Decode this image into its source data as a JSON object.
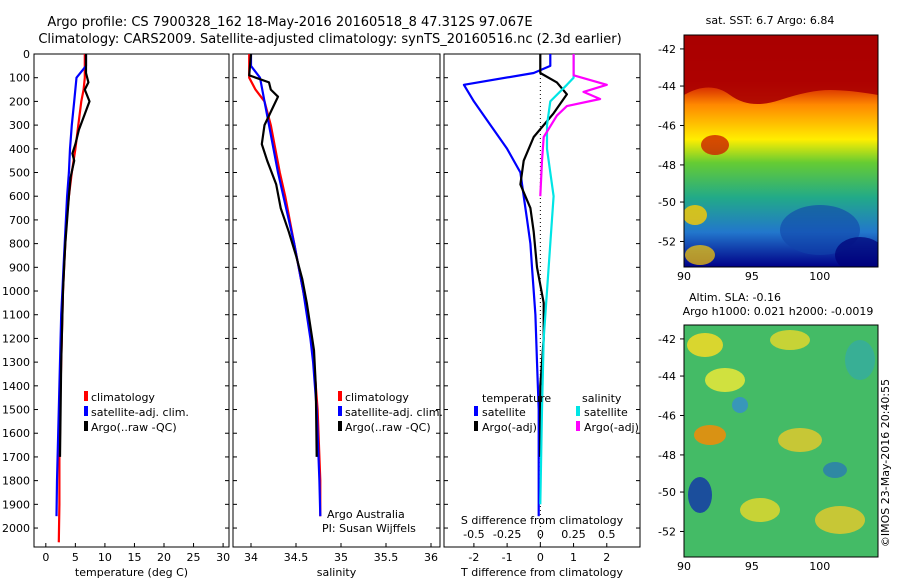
{
  "header": {
    "line1": "Argo profile: CS 7900328_162 18-May-2016 20160518_8 47.312S 97.067E",
    "line2": "Climatology: CARS2009. Satellite-adjusted climatology: synTS_20160516.nc (2.3d earlier)"
  },
  "colors": {
    "climatology": "#ff0000",
    "satellite": "#0000ff",
    "argo": "#000000",
    "salinity_satellite": "#00e5e5",
    "salinity_argo": "#ff00ff"
  },
  "chart_data": [
    {
      "type": "line",
      "xlabel": "temperature (deg C)",
      "xlim": [
        -2,
        31
      ],
      "xticks": [
        0,
        5,
        10,
        15,
        20,
        25,
        30
      ],
      "ylim": [
        2080,
        0
      ],
      "yticks": [
        0,
        100,
        200,
        300,
        400,
        500,
        600,
        700,
        800,
        900,
        1000,
        1100,
        1200,
        1300,
        1400,
        1500,
        1600,
        1700,
        1800,
        1900,
        2000
      ],
      "legend": [
        "climatology",
        "satellite-adj. clim.",
        "Argo(..raw -QC)"
      ],
      "legend_position": "lower-right",
      "series": [
        {
          "name": "climatology",
          "color": "#ff0000",
          "x": [
            6.6,
            6.6,
            6.4,
            6.0,
            5.5,
            5.0,
            4.4,
            3.9,
            3.5,
            3.3,
            3.1,
            2.9,
            2.8,
            2.7,
            2.6,
            2.5,
            2.4,
            2.4,
            2.3,
            2.3,
            2.3,
            2.2
          ],
          "y": [
            0,
            100,
            150,
            200,
            300,
            400,
            500,
            600,
            700,
            800,
            900,
            1000,
            1100,
            1200,
            1300,
            1400,
            1500,
            1600,
            1700,
            1800,
            1900,
            2060
          ]
        },
        {
          "name": "satellite-adj. clim.",
          "color": "#0000ff",
          "x": [
            6.8,
            6.8,
            5.2,
            4.8,
            4.4,
            4.1,
            3.9,
            3.6,
            3.4,
            3.2,
            3.0,
            2.8,
            2.6,
            2.5,
            2.4,
            2.3,
            2.2,
            2.1,
            2.0,
            1.9,
            1.8
          ],
          "y": [
            0,
            50,
            100,
            200,
            300,
            400,
            500,
            600,
            700,
            800,
            900,
            1000,
            1100,
            1200,
            1300,
            1400,
            1500,
            1600,
            1700,
            1800,
            1950
          ]
        },
        {
          "name": "Argo(..raw -QC)",
          "color": "#000000",
          "x": [
            6.8,
            6.8,
            7.2,
            6.6,
            7.4,
            6.5,
            5.6,
            5.0,
            4.5,
            4.8,
            4.2,
            3.9,
            3.6,
            3.3,
            3.1,
            2.9,
            2.8,
            2.7,
            2.6,
            2.5,
            2.4
          ],
          "y": [
            0,
            80,
            120,
            150,
            200,
            260,
            320,
            380,
            420,
            450,
            520,
            600,
            700,
            800,
            900,
            1000,
            1100,
            1200,
            1300,
            1500,
            1700
          ]
        }
      ]
    },
    {
      "type": "line",
      "xlabel": "salinity",
      "xlim": [
        33.8,
        36.1
      ],
      "xticks": [
        34,
        34.5,
        35,
        35.5,
        36
      ],
      "ylim": [
        2080,
        0
      ],
      "legend": [
        "climatology",
        "satellite-adj. clim.",
        "Argo(..raw -QC)"
      ],
      "legend_position": "lower-right",
      "annotation": [
        "Argo Australia",
        "PI: Susan Wijffels"
      ],
      "series": [
        {
          "name": "climatology",
          "color": "#ff0000",
          "x": [
            33.98,
            33.98,
            34.05,
            34.15,
            34.22,
            34.27,
            34.32,
            34.38,
            34.43,
            34.48,
            34.53,
            34.58,
            34.63,
            34.67,
            34.7,
            34.72,
            34.74,
            34.75,
            34.76,
            34.77,
            34.77
          ],
          "y": [
            0,
            100,
            150,
            200,
            300,
            400,
            500,
            600,
            700,
            800,
            900,
            1000,
            1100,
            1200,
            1300,
            1400,
            1500,
            1600,
            1700,
            1800,
            1950
          ]
        },
        {
          "name": "satellite-adj. clim.",
          "color": "#0000ff",
          "x": [
            34.0,
            34.0,
            34.1,
            34.15,
            34.2,
            34.25,
            34.3,
            34.36,
            34.42,
            34.48,
            34.53,
            34.58,
            34.62,
            34.66,
            34.69,
            34.71,
            34.73,
            34.74,
            34.75,
            34.76,
            34.77
          ],
          "y": [
            0,
            50,
            100,
            200,
            300,
            400,
            500,
            600,
            700,
            800,
            900,
            1000,
            1100,
            1200,
            1300,
            1400,
            1500,
            1600,
            1700,
            1800,
            1950
          ]
        },
        {
          "name": "Argo(..raw -QC)",
          "color": "#000000",
          "x": [
            34.0,
            33.98,
            34.2,
            34.22,
            34.3,
            34.25,
            34.15,
            34.12,
            34.18,
            34.28,
            34.33,
            34.42,
            34.5,
            34.57,
            34.62,
            34.66,
            34.7,
            34.72,
            34.73
          ],
          "y": [
            0,
            90,
            120,
            150,
            180,
            220,
            300,
            380,
            450,
            550,
            650,
            750,
            850,
            950,
            1050,
            1150,
            1250,
            1400,
            1700
          ]
        }
      ]
    },
    {
      "type": "line",
      "xlabel": "T difference from climatology",
      "xlabel_top": "S difference from climatology",
      "xlim": [
        -2.9,
        3.0
      ],
      "xticks": [
        -2,
        -1,
        0,
        1,
        2
      ],
      "xticks_top": [
        "-0.5",
        "-0.25",
        "0",
        "0.25",
        "0.5"
      ],
      "ylim": [
        2080,
        0
      ],
      "legend_temperature_title": "temperature",
      "legend_salinity_title": "salinity",
      "legend_temperature": [
        "satellite",
        "Argo(-adj)"
      ],
      "legend_salinity": [
        "satellite",
        "Argo(-adj)"
      ],
      "legend_position": "lower-center",
      "series": [
        {
          "name": "satellite",
          "color": "#0000ff",
          "x": [
            0.3,
            0.3,
            -0.2,
            -2.3,
            -2.0,
            -1.5,
            -1.0,
            -0.6,
            -0.5,
            -0.4,
            -0.3,
            -0.25,
            -0.2,
            -0.15,
            -0.1,
            -0.05,
            -0.05,
            -0.05
          ],
          "y": [
            0,
            50,
            80,
            130,
            200,
            300,
            400,
            500,
            600,
            700,
            800,
            900,
            1000,
            1100,
            1300,
            1500,
            1700,
            1950
          ]
        },
        {
          "name": "Argo(-adj)",
          "color": "#000000",
          "x": [
            0.0,
            0.0,
            0.5,
            0.8,
            0.4,
            -0.2,
            -0.5,
            -0.6,
            -0.3,
            -0.2,
            -0.1,
            0.1,
            0.1,
            0.0,
            0.0
          ],
          "y": [
            0,
            80,
            120,
            170,
            250,
            350,
            450,
            550,
            650,
            750,
            900,
            1050,
            1200,
            1400,
            1700
          ]
        },
        {
          "name": "satellite",
          "color": "#00e5e5",
          "x": [
            1.0,
            1.0,
            0.8,
            0.3,
            0.2,
            0.2,
            0.3,
            0.4,
            0.3,
            0.2,
            0.1,
            0.05,
            0.0
          ],
          "y": [
            0,
            100,
            130,
            200,
            300,
            400,
            500,
            600,
            800,
            1000,
            1200,
            1500,
            1900
          ]
        },
        {
          "name": "Argo(-adj)",
          "color": "#ff00ff",
          "x": [
            1.0,
            1.0,
            2.0,
            1.3,
            1.8,
            0.8,
            0.5,
            0.1,
            0.05,
            0.0
          ],
          "y": [
            0,
            90,
            130,
            160,
            190,
            220,
            260,
            350,
            450,
            600
          ]
        }
      ]
    }
  ],
  "maps": {
    "sst": {
      "title": "sat. SST: 6.7 Argo: 6.84",
      "y_ticks": [
        "-42",
        "-44",
        "-46",
        "-48",
        "-50",
        "-52"
      ],
      "x_ticks": [
        "90",
        "95",
        "100"
      ]
    },
    "sla": {
      "title_line1": "Altim. SLA: -0.16",
      "title_line2": "Argo h1000: 0.021 h2000: -0.0019",
      "y_ticks": [
        "-42",
        "-44",
        "-46",
        "-48",
        "-50",
        "-52"
      ],
      "x_ticks": [
        "90",
        "95",
        "100"
      ]
    }
  },
  "footer": {
    "credit": "©IMOS 23-May-2016 20:40:55"
  }
}
